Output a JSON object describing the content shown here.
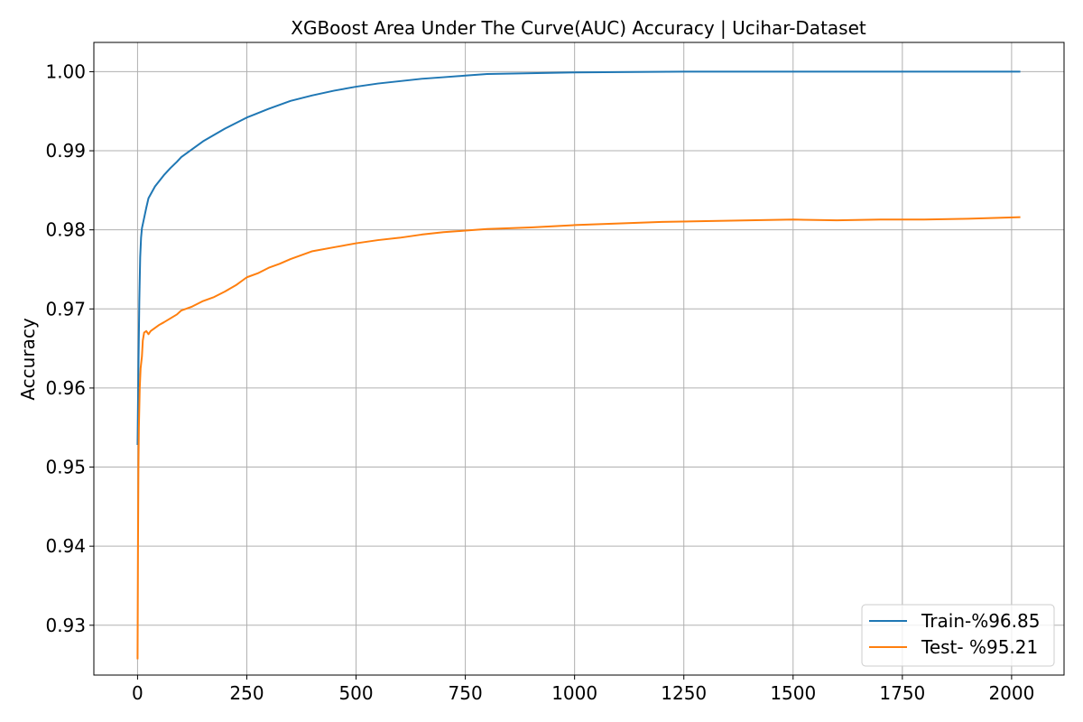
{
  "chart_data": {
    "type": "line",
    "title": "XGBoost Area Under The Curve(AUC) Accuracy | Ucihar-Dataset",
    "xlabel": "",
    "ylabel": "Accuracy",
    "xlim": [
      -100,
      2120
    ],
    "ylim": [
      0.9237,
      1.0037
    ],
    "xticks": [
      0,
      250,
      500,
      750,
      1000,
      1250,
      1500,
      1750,
      2000
    ],
    "yticks": [
      0.93,
      0.94,
      0.95,
      0.96,
      0.97,
      0.98,
      0.99,
      1.0
    ],
    "ytick_labels": [
      "0.93",
      "0.94",
      "0.95",
      "0.96",
      "0.97",
      "0.98",
      "0.99",
      "1.00"
    ],
    "grid": true,
    "legend_position": "lower-right",
    "series": [
      {
        "name": "Train-%96.85",
        "color": "#1f77b4",
        "points": [
          [
            0,
            0.9528
          ],
          [
            2,
            0.9625
          ],
          [
            4,
            0.971
          ],
          [
            6,
            0.9765
          ],
          [
            8,
            0.979
          ],
          [
            10,
            0.9802
          ],
          [
            15,
            0.9815
          ],
          [
            20,
            0.9828
          ],
          [
            25,
            0.984
          ],
          [
            30,
            0.9845
          ],
          [
            40,
            0.9855
          ],
          [
            50,
            0.9862
          ],
          [
            60,
            0.9869
          ],
          [
            75,
            0.9878
          ],
          [
            90,
            0.9886
          ],
          [
            100,
            0.9892
          ],
          [
            125,
            0.9902
          ],
          [
            150,
            0.9912
          ],
          [
            175,
            0.992
          ],
          [
            200,
            0.9928
          ],
          [
            225,
            0.9935
          ],
          [
            250,
            0.9942
          ],
          [
            300,
            0.9953
          ],
          [
            350,
            0.9963
          ],
          [
            400,
            0.997
          ],
          [
            450,
            0.9976
          ],
          [
            500,
            0.9981
          ],
          [
            550,
            0.9985
          ],
          [
            600,
            0.9988
          ],
          [
            650,
            0.9991
          ],
          [
            700,
            0.9993
          ],
          [
            750,
            0.9995
          ],
          [
            800,
            0.9997
          ],
          [
            900,
            0.9998
          ],
          [
            1000,
            0.9999
          ],
          [
            1100,
            0.99995
          ],
          [
            1250,
            1.0
          ],
          [
            1500,
            1.0
          ],
          [
            1750,
            1.0
          ],
          [
            2020,
            1.0
          ]
        ]
      },
      {
        "name": "Test- %95.21",
        "color": "#ff7f0e",
        "points": [
          [
            0,
            0.9257
          ],
          [
            1,
            0.94
          ],
          [
            2,
            0.95
          ],
          [
            3,
            0.955
          ],
          [
            5,
            0.96
          ],
          [
            7,
            0.9625
          ],
          [
            10,
            0.964
          ],
          [
            12,
            0.966
          ],
          [
            15,
            0.967
          ],
          [
            20,
            0.9672
          ],
          [
            25,
            0.9668
          ],
          [
            30,
            0.9672
          ],
          [
            40,
            0.9676
          ],
          [
            50,
            0.968
          ],
          [
            60,
            0.9683
          ],
          [
            75,
            0.9688
          ],
          [
            90,
            0.9693
          ],
          [
            100,
            0.9698
          ],
          [
            125,
            0.9703
          ],
          [
            150,
            0.971
          ],
          [
            175,
            0.9715
          ],
          [
            200,
            0.9722
          ],
          [
            225,
            0.973
          ],
          [
            250,
            0.974
          ],
          [
            275,
            0.9745
          ],
          [
            300,
            0.9752
          ],
          [
            325,
            0.9757
          ],
          [
            350,
            0.9763
          ],
          [
            375,
            0.9768
          ],
          [
            400,
            0.9773
          ],
          [
            450,
            0.9778
          ],
          [
            500,
            0.9783
          ],
          [
            550,
            0.9787
          ],
          [
            600,
            0.979
          ],
          [
            650,
            0.9794
          ],
          [
            700,
            0.9797
          ],
          [
            750,
            0.9799
          ],
          [
            800,
            0.9801
          ],
          [
            900,
            0.9803
          ],
          [
            1000,
            0.9806
          ],
          [
            1100,
            0.9808
          ],
          [
            1200,
            0.981
          ],
          [
            1300,
            0.9811
          ],
          [
            1400,
            0.9812
          ],
          [
            1500,
            0.9813
          ],
          [
            1600,
            0.9812
          ],
          [
            1700,
            0.9813
          ],
          [
            1800,
            0.9813
          ],
          [
            1900,
            0.9814
          ],
          [
            2020,
            0.9816
          ]
        ]
      }
    ]
  }
}
